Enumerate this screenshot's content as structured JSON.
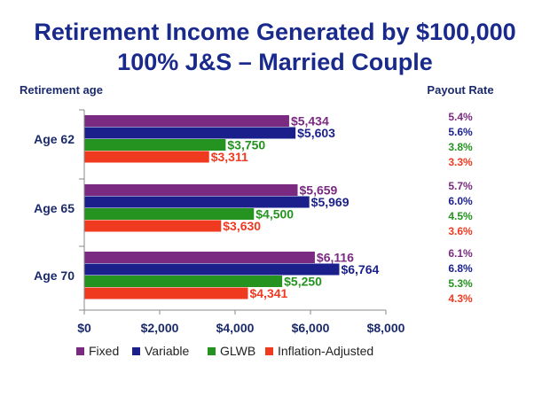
{
  "chart_data": {
    "type": "bar",
    "orientation": "horizontal",
    "title": "Retirement Income Generated by $100,000",
    "subtitle": "100% J&S – Married Couple",
    "ylabel": "Retirement age",
    "rate_header": "Payout Rate",
    "categories": [
      "Age 62",
      "Age 65",
      "Age 70"
    ],
    "xlim": [
      0,
      8000
    ],
    "x_ticks": [
      0,
      2000,
      4000,
      6000,
      8000
    ],
    "x_tick_labels": [
      "$0",
      "$2,000",
      "$4,000",
      "$6,000",
      "$8,000"
    ],
    "legend_position": "bottom",
    "grid": false,
    "series": [
      {
        "name": "Fixed",
        "color": "#7b2a82",
        "values": [
          5434,
          5659,
          6116
        ],
        "labels": [
          "$5,434",
          "$5,659",
          "$6,116"
        ],
        "rates": [
          "5.4%",
          "5.7%",
          "6.1%"
        ]
      },
      {
        "name": "Variable",
        "color": "#1a1f8c",
        "values": [
          5603,
          5969,
          6764
        ],
        "labels": [
          "$5,603",
          "$5,969",
          "$6,764"
        ],
        "rates": [
          "5.6%",
          "6.0%",
          "6.8%"
        ]
      },
      {
        "name": "GLWB",
        "color": "#24931f",
        "values": [
          3750,
          4500,
          5250
        ],
        "labels": [
          "$3,750",
          "$4,500",
          "$5,250"
        ],
        "rates": [
          "3.8%",
          "4.5%",
          "5.3%"
        ]
      },
      {
        "name": "Inflation-Adjusted",
        "color": "#f03a20",
        "values": [
          3311,
          3630,
          4341
        ],
        "labels": [
          "$3,311",
          "$3,630",
          "$4,341"
        ],
        "rates": [
          "3.3%",
          "3.6%",
          "4.3%"
        ]
      }
    ]
  }
}
